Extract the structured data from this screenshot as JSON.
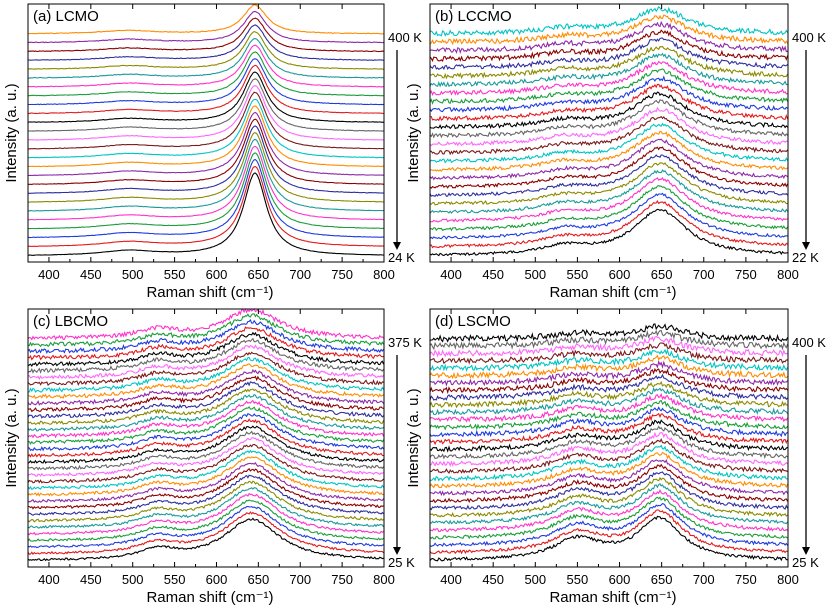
{
  "figure": {
    "colors": [
      "#000000",
      "#e41a1c",
      "#1f3ce0",
      "#1a9e3a",
      "#ff33cc",
      "#1a9b9b",
      "#8b8b00",
      "#2e2ea0",
      "#8b0000",
      "#8e2aa8",
      "#ff8c00",
      "#00c4c4",
      "#7a1a1a",
      "#ff66ff",
      "#666666"
    ]
  },
  "chart_data": [
    {
      "type": "line",
      "panel_label": "(a)",
      "title": "LCMO",
      "xlabel": "Raman shift (cm⁻¹)",
      "ylabel": "Intensity (a. u.)",
      "xlim": [
        375,
        800
      ],
      "xticks": [
        400,
        450,
        500,
        550,
        600,
        650,
        700,
        750,
        800
      ],
      "temp_high": "400 K",
      "temp_low": "24 K",
      "n_series": 26,
      "peaks": [
        {
          "center": 646,
          "width": 17,
          "amp_low_T": 1.0,
          "amp_high_T": 0.35
        },
        {
          "center": 495,
          "width": 40,
          "amp_low_T": 0.06,
          "amp_high_T": 0.04
        }
      ],
      "noise": 0.004
    },
    {
      "type": "line",
      "panel_label": "(b)",
      "title": "LCCMO",
      "xlabel": "Raman shift (cm⁻¹)",
      "ylabel": "Intensity (a. u.)",
      "xlim": [
        375,
        800
      ],
      "xticks": [
        400,
        450,
        500,
        550,
        600,
        650,
        700,
        750,
        800
      ],
      "temp_high": "400 K",
      "temp_low": "22 K",
      "n_series": 27,
      "peaks": [
        {
          "center": 648,
          "width": 38,
          "amp_low_T": 0.55,
          "amp_high_T": 0.3
        },
        {
          "center": 535,
          "width": 35,
          "amp_low_T": 0.1,
          "amp_high_T": 0.06
        }
      ],
      "noise": 0.03
    },
    {
      "type": "line",
      "panel_label": "(c)",
      "title": "LBCMO",
      "xlabel": "Raman shift (cm⁻¹)",
      "ylabel": "Intensity (a. u.)",
      "xlim": [
        375,
        800
      ],
      "xticks": [
        400,
        450,
        500,
        550,
        600,
        650,
        700,
        750,
        800
      ],
      "temp_high": "375 K",
      "temp_low": "25 K",
      "n_series": 35,
      "peaks": [
        {
          "center": 642,
          "width": 40,
          "amp_low_T": 0.5,
          "amp_high_T": 0.35
        },
        {
          "center": 530,
          "width": 28,
          "amp_low_T": 0.12,
          "amp_high_T": 0.1
        }
      ],
      "noise": 0.025
    },
    {
      "type": "line",
      "panel_label": "(d)",
      "title": "LSCMO",
      "xlabel": "Raman shift (cm⁻¹)",
      "ylabel": "Intensity (a. u.)",
      "xlim": [
        375,
        800
      ],
      "xticks": [
        400,
        450,
        500,
        550,
        600,
        650,
        700,
        750,
        800
      ],
      "temp_high": "400 K",
      "temp_low": "25 K",
      "n_series": 31,
      "peaks": [
        {
          "center": 648,
          "width": 32,
          "amp_low_T": 0.5,
          "amp_high_T": 0.15
        },
        {
          "center": 550,
          "width": 35,
          "amp_low_T": 0.25,
          "amp_high_T": 0.06
        }
      ],
      "noise": 0.035
    }
  ]
}
